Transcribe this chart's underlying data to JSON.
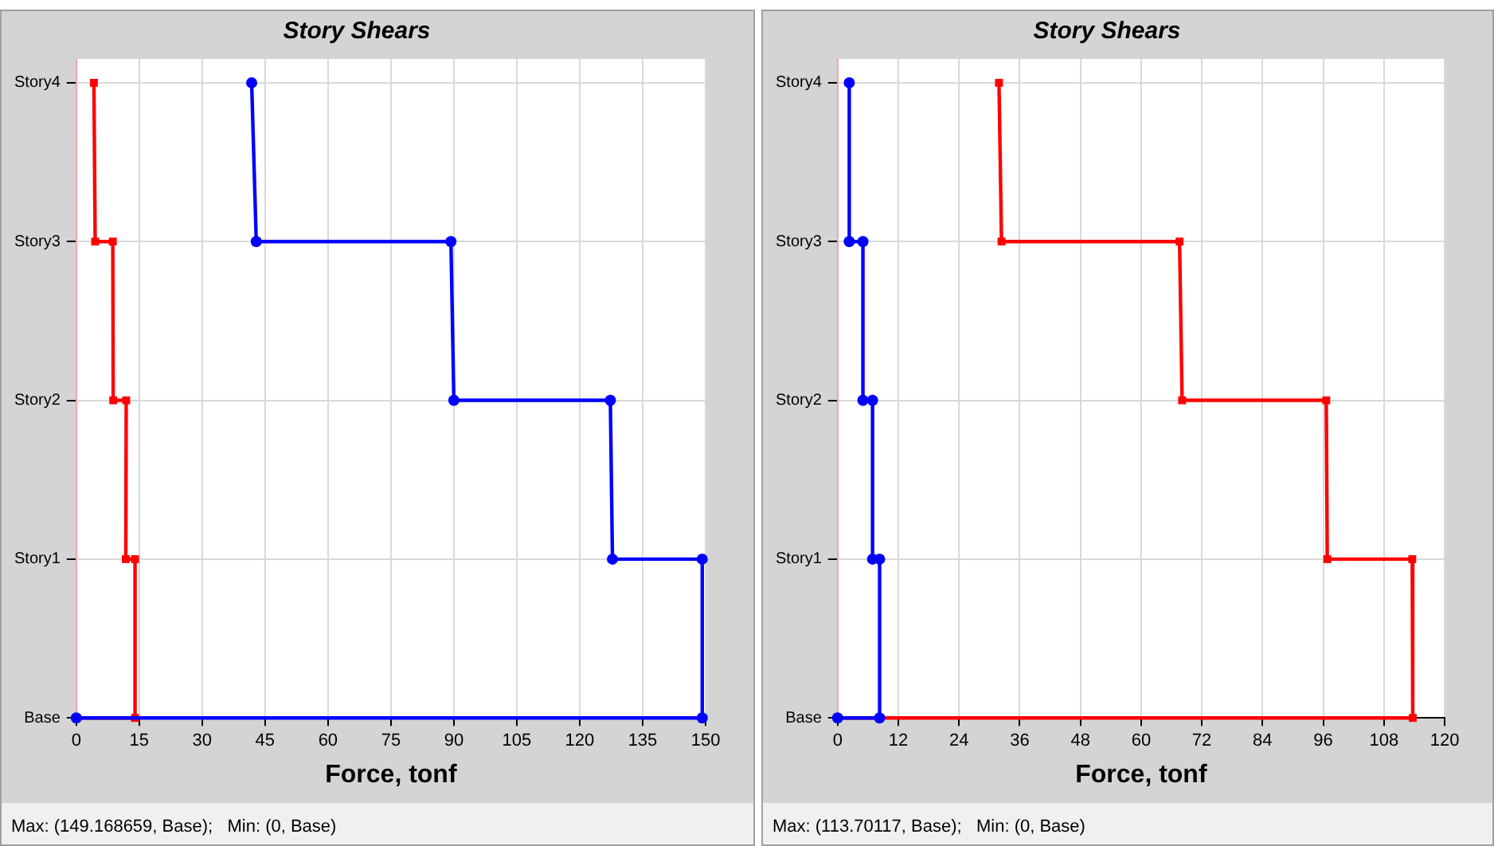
{
  "chart_data": [
    {
      "type": "line",
      "orientation": "horizontal",
      "title": "Story Shears",
      "xlabel": "Force, tonf",
      "xlim": [
        0,
        150
      ],
      "xticks": [
        0,
        15,
        30,
        45,
        60,
        75,
        90,
        105,
        120,
        135,
        150
      ],
      "categories": [
        "Story4",
        "Story3",
        "Story2",
        "Story1",
        "Base"
      ],
      "grid": true,
      "legend": false,
      "annotations": [
        "Max: (149.168659, Base);   Min: (0, Base)"
      ],
      "series": [
        {
          "color": "#0000ff",
          "marker": "circle",
          "x": [
            "Story4",
            "Story3",
            "Story3",
            "Story2",
            "Story2",
            "Story1",
            "Story1",
            "Base",
            "Base"
          ],
          "values": [
            41.8,
            42.9,
            89.3,
            90.0,
            127.3,
            127.8,
            149.2,
            149.2,
            0
          ]
        },
        {
          "color": "#ff0000",
          "marker": "square",
          "x": [
            "Story4",
            "Story3",
            "Story3",
            "Story2",
            "Story2",
            "Story1",
            "Story1",
            "Base",
            "Base"
          ],
          "values": [
            4.2,
            4.5,
            8.7,
            8.8,
            11.9,
            11.8,
            14.0,
            14.0,
            0
          ]
        }
      ]
    },
    {
      "type": "line",
      "orientation": "horizontal",
      "title": "Story Shears",
      "xlabel": "Force, tonf",
      "xlim": [
        0,
        120
      ],
      "xticks": [
        0,
        12,
        24,
        36,
        48,
        60,
        72,
        84,
        96,
        108,
        120
      ],
      "categories": [
        "Story4",
        "Story3",
        "Story2",
        "Story1",
        "Base"
      ],
      "grid": true,
      "legend": false,
      "annotations": [
        "Max: (113.70117, Base);   Min: (0, Base)"
      ],
      "series": [
        {
          "color": "#0000ff",
          "marker": "circle",
          "x": [
            "Story4",
            "Story3",
            "Story3",
            "Story2",
            "Story2",
            "Story1",
            "Story1",
            "Base",
            "Base"
          ],
          "values": [
            2.3,
            2.3,
            5.0,
            5.0,
            6.9,
            6.9,
            8.3,
            8.3,
            0
          ]
        },
        {
          "color": "#ff0000",
          "marker": "square",
          "x": [
            "Story4",
            "Story3",
            "Story3",
            "Story2",
            "Story2",
            "Story1",
            "Story1",
            "Base",
            "Base"
          ],
          "values": [
            31.9,
            32.4,
            67.6,
            68.1,
            96.6,
            96.8,
            113.6,
            113.7,
            0
          ]
        }
      ]
    }
  ]
}
